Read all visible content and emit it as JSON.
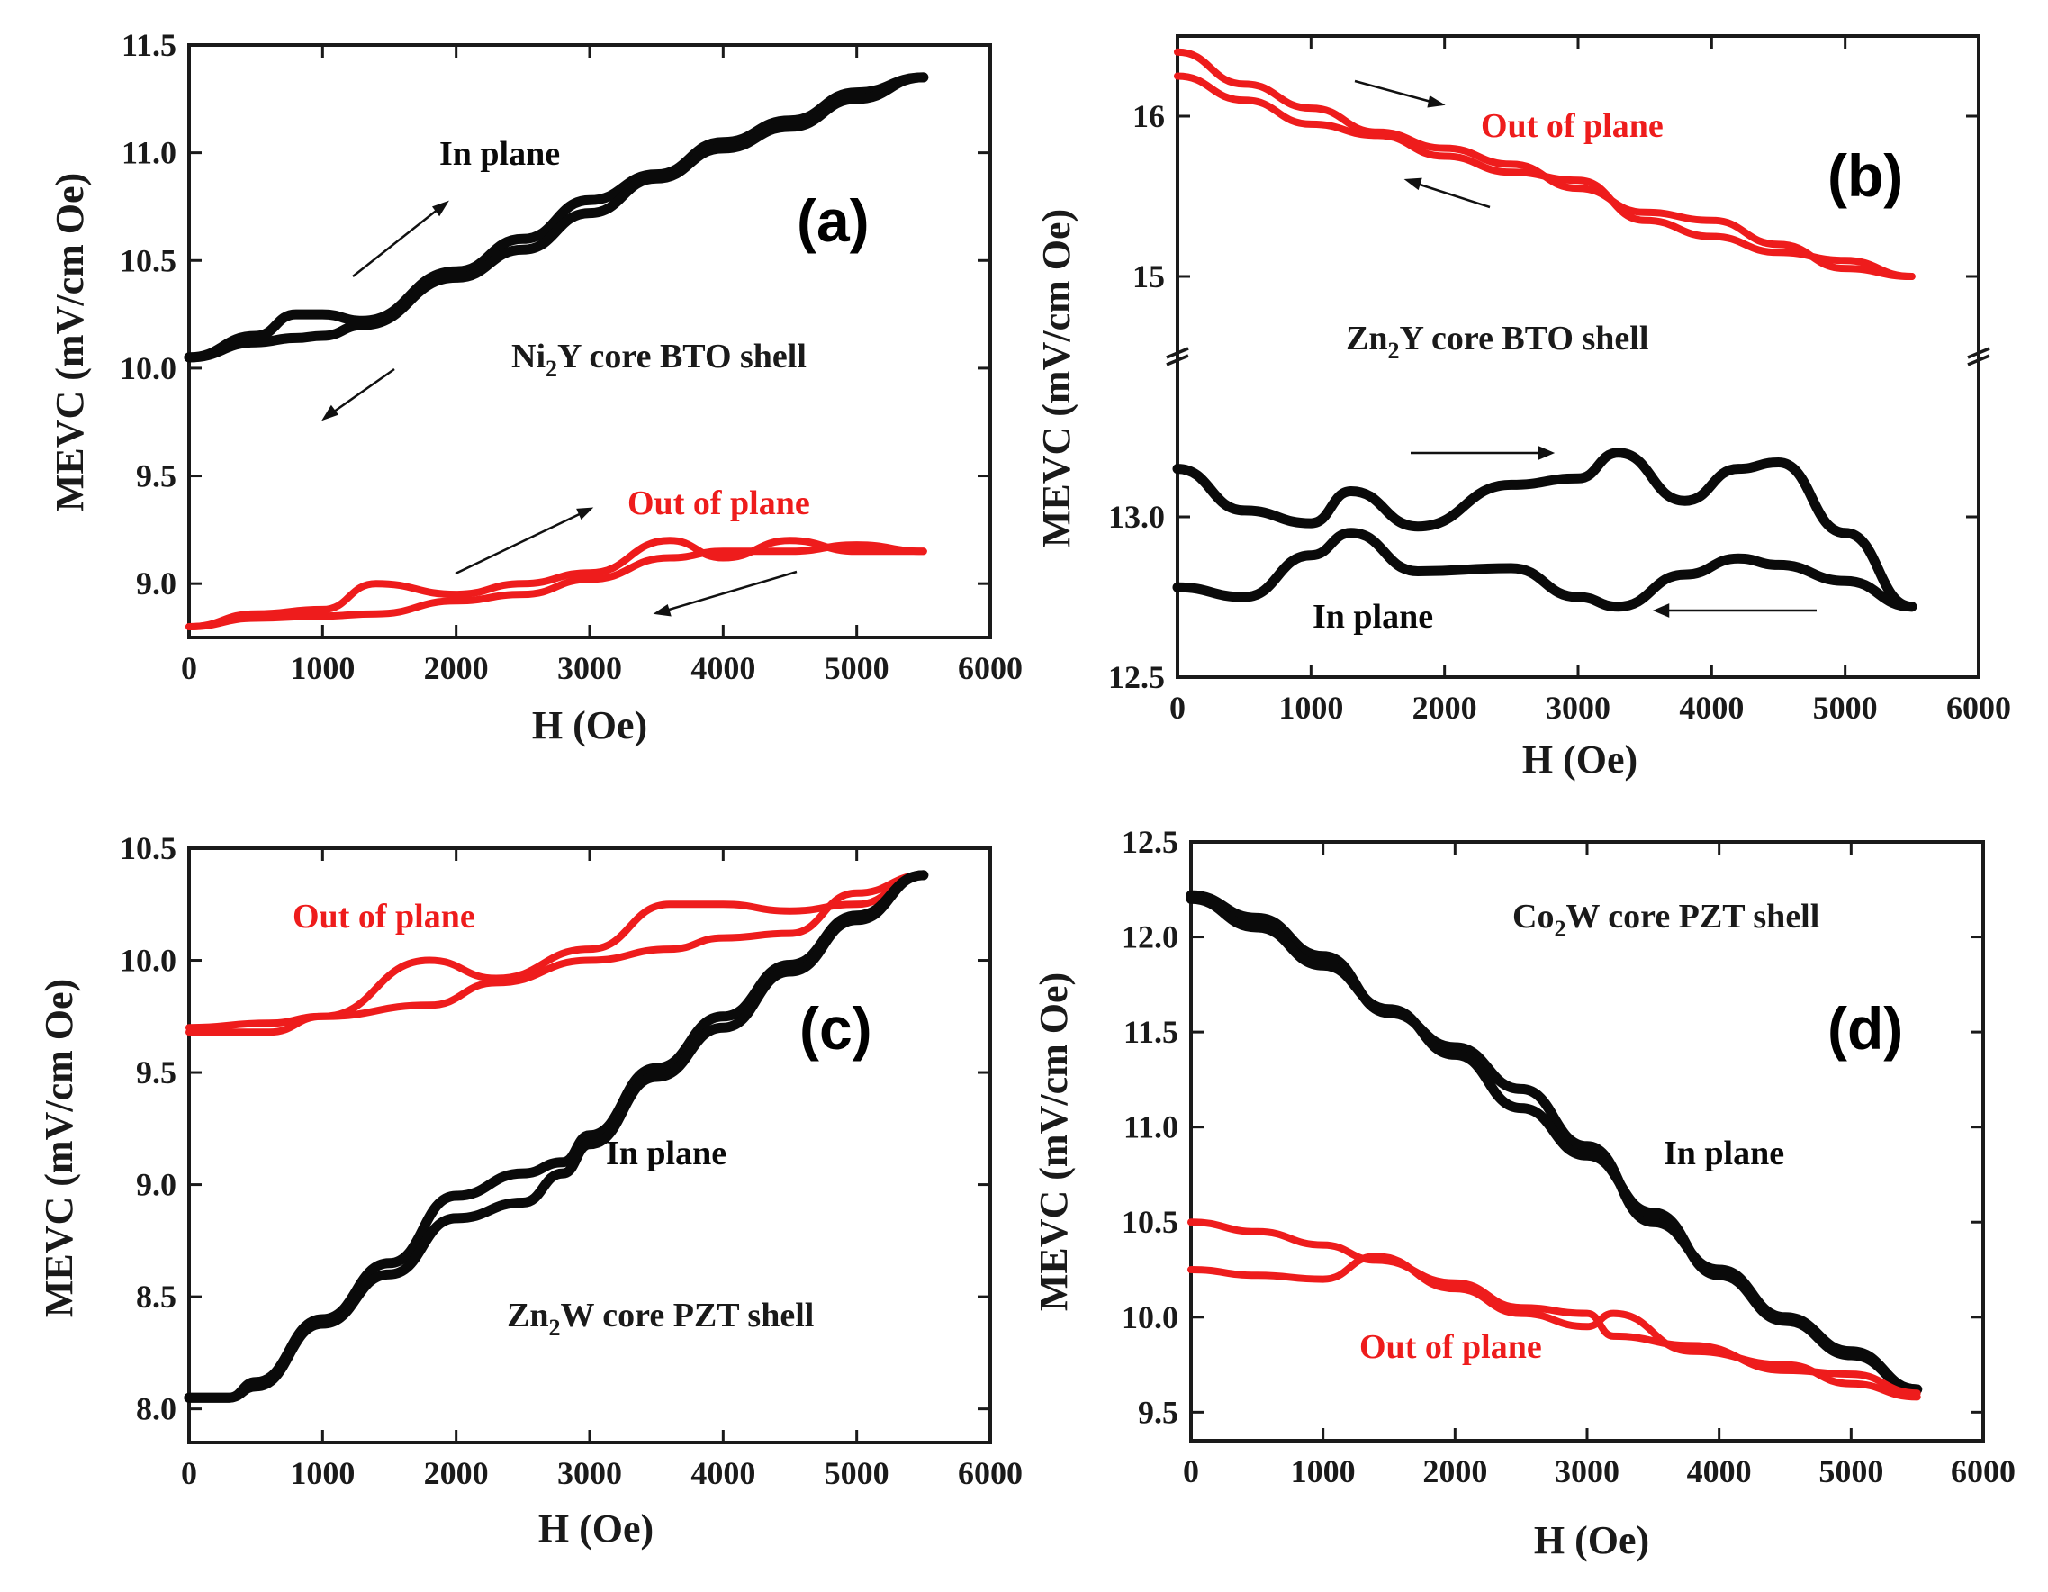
{
  "colors": {
    "in_plane": "#0a0a0a",
    "out_of_plane": "#ee1c1c",
    "frame": "#1a1a1a"
  },
  "chart_data": [
    {
      "id": "a",
      "type": "line",
      "panel_label": "(a)",
      "sample_label": {
        "prefix": "Ni",
        "sub": "2",
        "suffix": "Y core BTO shell"
      },
      "xlabel": "H (Oe)",
      "ylabel": "MEVC (mV/cm Oe)",
      "xlim": [
        0,
        6000
      ],
      "ylim": [
        8.75,
        11.5
      ],
      "xticks": [
        0,
        1000,
        2000,
        3000,
        4000,
        5000,
        6000
      ],
      "yticks": [
        9.0,
        9.5,
        10.0,
        10.5,
        11.0,
        11.5
      ],
      "ytick_labels": [
        "9.0",
        "9.5",
        "10.0",
        "10.5",
        "11.0",
        "11.5"
      ],
      "series": [
        {
          "name": "In plane",
          "color": "in_plane",
          "x": [
            0,
            500,
            800,
            1000,
            1300,
            2000,
            2500,
            3000,
            3500,
            4000,
            4500,
            5000,
            5500
          ],
          "y_increasing": [
            10.05,
            10.15,
            10.25,
            10.25,
            10.22,
            10.45,
            10.6,
            10.78,
            10.9,
            11.05,
            11.15,
            11.28,
            11.35
          ],
          "y_decreasing": [
            10.05,
            10.12,
            10.14,
            10.15,
            10.2,
            10.42,
            10.55,
            10.72,
            10.88,
            11.02,
            11.12,
            11.25,
            11.35
          ]
        },
        {
          "name": "Out of plane",
          "color": "out_of_plane",
          "x": [
            0,
            500,
            1000,
            1400,
            2000,
            2500,
            3000,
            3600,
            4000,
            4500,
            5000,
            5500
          ],
          "y_increasing": [
            8.8,
            8.86,
            8.88,
            9.0,
            8.95,
            9.0,
            9.05,
            9.2,
            9.12,
            9.2,
            9.15,
            9.15
          ],
          "y_decreasing": [
            8.8,
            8.84,
            8.85,
            8.86,
            8.92,
            8.95,
            9.02,
            9.12,
            9.15,
            9.15,
            9.18,
            9.15
          ]
        }
      ],
      "annotations": [
        {
          "text": "In plane",
          "color": "in_plane"
        },
        {
          "text": "Out of plane",
          "color": "out_of_plane"
        }
      ]
    },
    {
      "id": "b",
      "type": "line",
      "panel_label": "(b)",
      "sample_label": {
        "prefix": "Zn",
        "sub": "2",
        "suffix": "Y core BTO shell"
      },
      "xlabel": "H (Oe)",
      "ylabel": "MEVC (mV/cm Oe)",
      "xlim": [
        0,
        6000
      ],
      "broken_axis": true,
      "ylim_lower": [
        12.5,
        13.5
      ],
      "ylim_upper": [
        14.5,
        16.5
      ],
      "xticks": [
        0,
        1000,
        2000,
        3000,
        4000,
        5000,
        6000
      ],
      "yticks_lower": [
        12.5,
        13.0
      ],
      "ytick_labels_lower": [
        "12.5",
        "13.0"
      ],
      "yticks_upper": [
        15,
        16
      ],
      "ytick_labels_upper": [
        "15",
        "16"
      ],
      "series": [
        {
          "name": "Out of plane",
          "color": "out_of_plane",
          "x": [
            0,
            500,
            1000,
            1500,
            2000,
            2500,
            3000,
            3500,
            4000,
            4500,
            5000,
            5500
          ],
          "y_increasing": [
            16.4,
            16.2,
            16.05,
            15.9,
            15.8,
            15.7,
            15.55,
            15.4,
            15.35,
            15.2,
            15.05,
            15.0
          ],
          "y_decreasing": [
            16.25,
            16.1,
            15.95,
            15.88,
            15.75,
            15.65,
            15.6,
            15.35,
            15.25,
            15.15,
            15.1,
            15.0
          ]
        },
        {
          "name": "In plane",
          "color": "in_plane",
          "x": [
            0,
            500,
            1000,
            1300,
            1800,
            2500,
            3000,
            3300,
            3800,
            4200,
            4500,
            5000,
            5500
          ],
          "y_increasing": [
            13.15,
            13.02,
            12.98,
            13.08,
            12.97,
            13.1,
            13.12,
            13.2,
            13.05,
            13.15,
            13.17,
            12.95,
            12.72
          ],
          "y_decreasing": [
            12.78,
            12.75,
            12.88,
            12.95,
            12.83,
            12.84,
            12.75,
            12.72,
            12.82,
            12.87,
            12.85,
            12.8,
            12.72
          ]
        }
      ],
      "annotations": [
        {
          "text": "Out of plane",
          "color": "out_of_plane"
        },
        {
          "text": "In plane",
          "color": "in_plane"
        }
      ]
    },
    {
      "id": "c",
      "type": "line",
      "panel_label": "(c)",
      "sample_label": {
        "prefix": "Zn",
        "sub": "2",
        "suffix": "W core PZT shell"
      },
      "xlabel": "H (Oe)",
      "ylabel": "MEVC (mV/cm Oe)",
      "xlim": [
        0,
        6000
      ],
      "ylim": [
        7.85,
        10.5
      ],
      "xticks": [
        0,
        1000,
        2000,
        3000,
        4000,
        5000,
        6000
      ],
      "yticks": [
        8.0,
        8.5,
        9.0,
        9.5,
        10.0,
        10.5
      ],
      "ytick_labels": [
        "8.0",
        "8.5",
        "9.0",
        "9.5",
        "10.0",
        "10.5"
      ],
      "series": [
        {
          "name": "Out of plane",
          "color": "out_of_plane",
          "x": [
            0,
            600,
            1000,
            1800,
            2300,
            3000,
            3600,
            4000,
            4500,
            5000,
            5500
          ],
          "y_increasing": [
            9.7,
            9.72,
            9.75,
            10.0,
            9.92,
            10.05,
            10.25,
            10.25,
            10.22,
            10.25,
            10.38
          ],
          "y_decreasing": [
            9.68,
            9.68,
            9.75,
            9.8,
            9.9,
            10.0,
            10.05,
            10.1,
            10.12,
            10.3,
            10.38
          ]
        },
        {
          "name": "In plane",
          "color": "in_plane",
          "x": [
            0,
            300,
            500,
            1000,
            1500,
            2000,
            2500,
            2800,
            3000,
            3500,
            4000,
            4500,
            5000,
            5500
          ],
          "y_increasing": [
            8.05,
            8.05,
            8.12,
            8.4,
            8.65,
            8.95,
            9.05,
            9.1,
            9.22,
            9.52,
            9.75,
            9.98,
            10.2,
            10.38
          ],
          "y_decreasing": [
            8.05,
            8.05,
            8.1,
            8.38,
            8.6,
            8.85,
            8.92,
            9.05,
            9.18,
            9.48,
            9.7,
            9.95,
            10.18,
            10.38
          ]
        }
      ],
      "annotations": [
        {
          "text": "Out of plane",
          "color": "out_of_plane"
        },
        {
          "text": "In plane",
          "color": "in_plane"
        }
      ]
    },
    {
      "id": "d",
      "type": "line",
      "panel_label": "(d)",
      "sample_label": {
        "prefix": "Co",
        "sub": "2",
        "suffix": "W core PZT shell"
      },
      "xlabel": "H (Oe)",
      "ylabel": "MEVC (mV/cm Oe)",
      "xlim": [
        0,
        6000
      ],
      "ylim": [
        9.35,
        12.5
      ],
      "xticks": [
        0,
        1000,
        2000,
        3000,
        4000,
        5000,
        6000
      ],
      "yticks": [
        9.5,
        10.0,
        10.5,
        11.0,
        11.5,
        12.0,
        12.5
      ],
      "ytick_labels": [
        "9.5",
        "10.0",
        "10.5",
        "11.0",
        "11.5",
        "12.0",
        "12.5"
      ],
      "series": [
        {
          "name": "In plane",
          "color": "in_plane",
          "x": [
            0,
            500,
            1000,
            1500,
            2000,
            2500,
            3000,
            3500,
            4000,
            4500,
            5000,
            5500
          ],
          "y_increasing": [
            12.22,
            12.1,
            11.9,
            11.6,
            11.42,
            11.2,
            10.9,
            10.5,
            10.25,
            10.0,
            9.82,
            9.62
          ],
          "y_decreasing": [
            12.2,
            12.05,
            11.85,
            11.62,
            11.38,
            11.1,
            10.85,
            10.55,
            10.22,
            9.98,
            9.8,
            9.62
          ]
        },
        {
          "name": "Out of plane",
          "color": "out_of_plane",
          "x": [
            0,
            500,
            1000,
            1400,
            2000,
            2500,
            3000,
            3200,
            3800,
            4500,
            5000,
            5500
          ],
          "y_increasing": [
            10.5,
            10.45,
            10.38,
            10.3,
            10.18,
            10.05,
            10.02,
            9.9,
            9.85,
            9.72,
            9.7,
            9.6
          ],
          "y_decreasing": [
            10.25,
            10.22,
            10.2,
            10.32,
            10.15,
            10.02,
            9.95,
            10.02,
            9.82,
            9.75,
            9.65,
            9.58
          ]
        }
      ],
      "annotations": [
        {
          "text": "In plane",
          "color": "in_plane"
        },
        {
          "text": "Out of plane",
          "color": "out_of_plane"
        }
      ]
    }
  ]
}
